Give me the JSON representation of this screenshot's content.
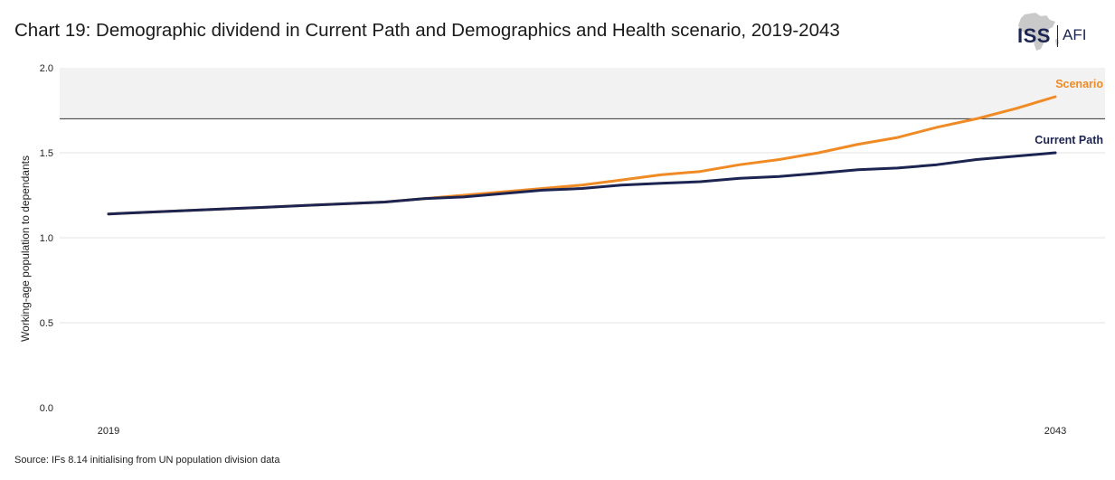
{
  "header": {
    "title": "Chart 19: Demographic dividend in Current Path and Demographics and Health scenario, 2019-2043",
    "logo_left": "ISS",
    "logo_right": "AFI"
  },
  "footer": {
    "source": "Source: IFs 8.14 initialising from UN population division data"
  },
  "colors": {
    "current_path": "#1c2452",
    "scenario": "#f08a24",
    "band": "#f2f2f2",
    "threshold": "#333333",
    "grid": "#e3e3e3"
  },
  "chart_data": {
    "type": "line",
    "title": "Chart 19: Demographic dividend in Current Path and Demographics and Health scenario, 2019-2043",
    "xlabel": "",
    "ylabel": "Working-age population to dependants",
    "x": [
      2019,
      2020,
      2021,
      2022,
      2023,
      2024,
      2025,
      2026,
      2027,
      2028,
      2029,
      2030,
      2031,
      2032,
      2033,
      2034,
      2035,
      2036,
      2037,
      2038,
      2039,
      2040,
      2041,
      2042,
      2043
    ],
    "x_tick_labels": [
      "2019",
      "2043"
    ],
    "y_ticks": [
      "0.0",
      "0.5",
      "1.0",
      "1.5",
      "2.0"
    ],
    "ylim": [
      0,
      2.0
    ],
    "threshold": 1.7,
    "shaded_band": [
      1.7,
      2.0
    ],
    "grid": true,
    "series": [
      {
        "name": "Current Path",
        "color": "#1c2452",
        "values": [
          1.14,
          1.15,
          1.16,
          1.17,
          1.18,
          1.19,
          1.2,
          1.21,
          1.23,
          1.24,
          1.26,
          1.28,
          1.29,
          1.31,
          1.32,
          1.33,
          1.35,
          1.36,
          1.38,
          1.4,
          1.41,
          1.43,
          1.46,
          1.48,
          1.5
        ]
      },
      {
        "name": "Scenario",
        "color": "#f08a24",
        "values": [
          1.14,
          1.15,
          1.16,
          1.17,
          1.18,
          1.19,
          1.2,
          1.21,
          1.23,
          1.25,
          1.27,
          1.29,
          1.31,
          1.34,
          1.37,
          1.39,
          1.43,
          1.46,
          1.5,
          1.55,
          1.59,
          1.65,
          1.7,
          1.76,
          1.83
        ]
      }
    ]
  }
}
